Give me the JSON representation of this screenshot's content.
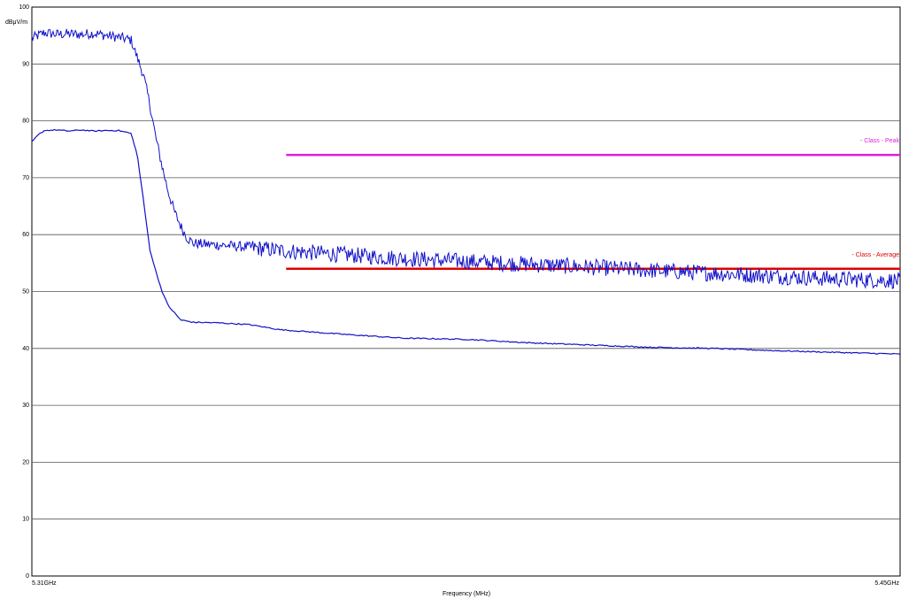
{
  "chart_data": {
    "type": "line",
    "title": "",
    "xlabel": "Frequency (MHz)",
    "ylabel": "dBμV/m",
    "ylim": [
      0,
      100
    ],
    "yticks": [
      0,
      10,
      20,
      30,
      40,
      50,
      60,
      70,
      80,
      90,
      100
    ],
    "xlim": [
      5310,
      5450
    ],
    "xtick_labels": [
      {
        "x": 5310,
        "label": "5.31GHz"
      },
      {
        "x": 5450,
        "label": "5.45GHz"
      }
    ],
    "grid": "horizontal",
    "series": [
      {
        "color": "#1010c8",
        "style": "noisy",
        "noise": 0.9,
        "x": [
          5310,
          5312,
          5314,
          5316,
          5318,
          5320,
          5322,
          5324,
          5326,
          5328,
          5329,
          5330,
          5331,
          5332,
          5333,
          5334,
          5335,
          5336,
          5338,
          5340,
          5345,
          5350,
          5360,
          5370,
          5380,
          5390,
          5400,
          5410,
          5420,
          5430,
          5440,
          5450
        ],
        "values": [
          94.5,
          95.5,
          95.2,
          95.3,
          95.2,
          95.4,
          95.0,
          94.7,
          94.2,
          88.0,
          83.0,
          77.0,
          72.0,
          67.5,
          64.0,
          61.5,
          59.5,
          58.5,
          58.3,
          58.2,
          57.8,
          57.2,
          56.5,
          55.8,
          55.3,
          54.8,
          54.3,
          53.7,
          53.2,
          52.7,
          52.2,
          51.9
        ]
      },
      {
        "color": "#1010c8",
        "style": "smooth",
        "noise": 0.1,
        "x": [
          5310,
          5311,
          5312,
          5314,
          5316,
          5318,
          5320,
          5322,
          5324,
          5326,
          5327,
          5328,
          5329,
          5330,
          5331,
          5332,
          5334,
          5336,
          5340,
          5345,
          5350,
          5360,
          5370,
          5380,
          5390,
          5400,
          5410,
          5420,
          5430,
          5440,
          5450
        ],
        "values": [
          76.3,
          77.5,
          78.3,
          78.4,
          78.2,
          78.4,
          78.2,
          78.3,
          78.3,
          77.8,
          74.0,
          66.0,
          57.5,
          53.5,
          50.0,
          47.5,
          45.0,
          44.6,
          44.5,
          44.2,
          43.3,
          42.5,
          41.8,
          41.6,
          41.0,
          40.6,
          40.2,
          40.0,
          39.6,
          39.3,
          39.0
        ]
      }
    ],
    "limit_lines": [
      {
        "name": "- Class - Peak",
        "color": "#e01ee0",
        "value": 74,
        "x_start": 5351,
        "x_end": 5450
      },
      {
        "name": "- Class - Average",
        "color": "#e00000",
        "value": 54,
        "x_start": 5351,
        "x_end": 5450
      }
    ]
  }
}
